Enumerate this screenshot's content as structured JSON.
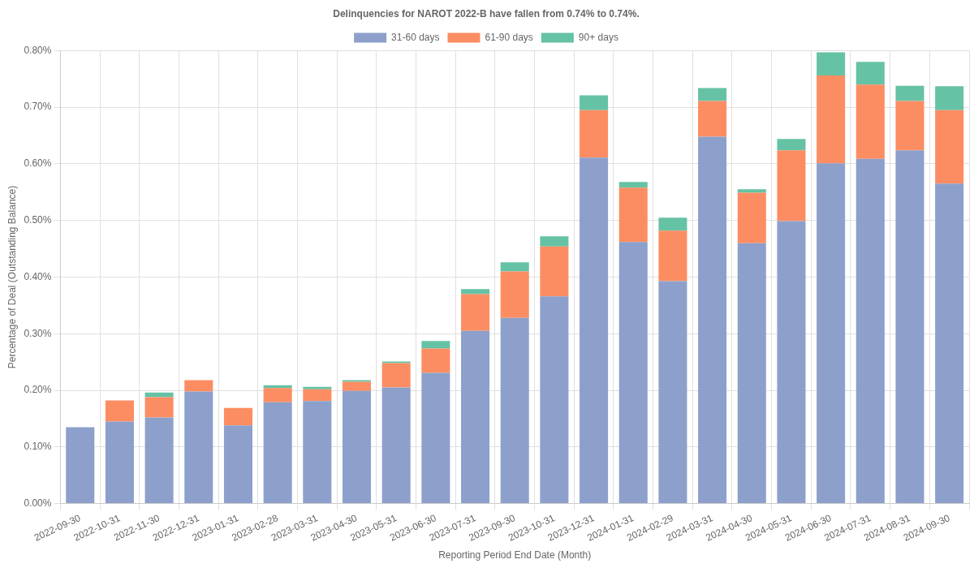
{
  "chart_data": {
    "type": "bar",
    "title": "Delinquencies for NAROT 2022-B have fallen from 0.74% to 0.74%.",
    "x_label": "Reporting Period End Date (Month)",
    "y_label": "Percentage of Deal (Outstanding Balance)",
    "categories": [
      "2022-09-30",
      "2022-10-31",
      "2022-11-30",
      "2022-12-31",
      "2023-01-31",
      "2023-02-28",
      "2023-03-31",
      "2023-04-30",
      "2023-05-31",
      "2023-06-30",
      "2023-07-31",
      "2023-09-30",
      "2023-10-31",
      "2023-12-31",
      "2024-01-31",
      "2024-02-29",
      "2024-03-31",
      "2024-04-30",
      "2024-05-31",
      "2024-06-30",
      "2024-07-31",
      "2024-08-31",
      "2024-09-30"
    ],
    "series": [
      {
        "name": "31-60 days",
        "color": "#8da0cb",
        "values": [
          0.135,
          0.145,
          0.152,
          0.198,
          0.138,
          0.179,
          0.181,
          0.199,
          0.205,
          0.231,
          0.305,
          0.328,
          0.366,
          0.611,
          0.462,
          0.393,
          0.648,
          0.46,
          0.499,
          0.601,
          0.609,
          0.624,
          0.565
        ]
      },
      {
        "name": "61-90 days",
        "color": "#fc8d62",
        "values": [
          0,
          0.037,
          0.036,
          0.02,
          0.031,
          0.025,
          0.021,
          0.016,
          0.043,
          0.043,
          0.065,
          0.082,
          0.088,
          0.084,
          0.096,
          0.089,
          0.063,
          0.089,
          0.125,
          0.155,
          0.131,
          0.087,
          0.13
        ]
      },
      {
        "name": "90+ days",
        "color": "#66c2a5",
        "values": [
          0,
          0,
          0.008,
          0,
          0,
          0.005,
          0.004,
          0.003,
          0.003,
          0.013,
          0.009,
          0.016,
          0.018,
          0.026,
          0.01,
          0.023,
          0.023,
          0.006,
          0.02,
          0.041,
          0.04,
          0.027,
          0.042
        ]
      }
    ],
    "stacked": true,
    "legend": "top",
    "grid": true,
    "ylim": [
      0,
      0.8
    ],
    "yticks": [
      {
        "value": 0,
        "label": "0.00%"
      },
      {
        "value": 0.1,
        "label": "0.10%"
      },
      {
        "value": 0.2,
        "label": "0.20%"
      },
      {
        "value": 0.3,
        "label": "0.30%"
      },
      {
        "value": 0.4,
        "label": "0.40%"
      },
      {
        "value": 0.5,
        "label": "0.50%"
      },
      {
        "value": 0.6,
        "label": "0.60%"
      },
      {
        "value": 0.7,
        "label": "0.70%"
      },
      {
        "value": 0.8,
        "label": "0.80%"
      }
    ]
  }
}
